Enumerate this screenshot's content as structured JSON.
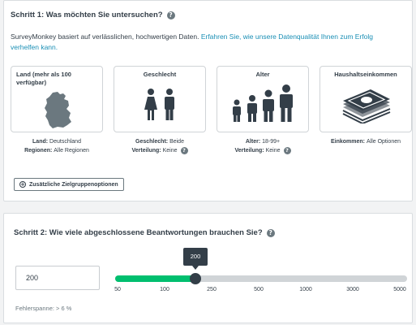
{
  "step1": {
    "title": "Schritt 1: Was möchten Sie untersuchen?",
    "intro_text": "SurveyMonkey basiert auf verlässlichen, hochwertigen Daten. ",
    "intro_link": "Erfahren Sie, wie unsere Datenqualität Ihnen zum Erfolg verhelfen kann.",
    "tiles": [
      {
        "title": "Land (mehr als 100 verfügbar)",
        "icon": "germany-map-icon",
        "captions": [
          {
            "label": "Land:",
            "value": "Deutschland"
          },
          {
            "label": "Regionen:",
            "value": "Alle Regionen"
          }
        ]
      },
      {
        "title": "Geschlecht",
        "icon": "gender-icon",
        "captions": [
          {
            "label": "Geschlecht:",
            "value": "Beide"
          },
          {
            "label": "Verteilung:",
            "value": "Keine"
          }
        ]
      },
      {
        "title": "Alter",
        "icon": "age-group-icon",
        "captions": [
          {
            "label": "Alter:",
            "value": "18-99+"
          },
          {
            "label": "Verteilung:",
            "value": "Keine"
          }
        ]
      },
      {
        "title": "Haushaltseinkommen",
        "icon": "money-stack-icon",
        "captions": [
          {
            "label": "Einkommen:",
            "value": "Alle Optionen"
          }
        ]
      }
    ],
    "more_button": "Zusätzliche Zielgruppenoptionen"
  },
  "step2": {
    "title": "Schritt 2: Wie viele abgeschlossene Beantwortungen brauchen Sie?",
    "input_value": "200",
    "slider": {
      "value": "200",
      "ticks": [
        "50",
        "100",
        "250",
        "500",
        "1000",
        "3000",
        "5000"
      ],
      "selected_position_fraction": 0.275
    },
    "margin_of_error": "Fehlerspanne: > 6 %"
  },
  "colors": {
    "accent_green": "#00bf6f",
    "link_blue": "#1a8fb5",
    "text_dark": "#333e48"
  }
}
